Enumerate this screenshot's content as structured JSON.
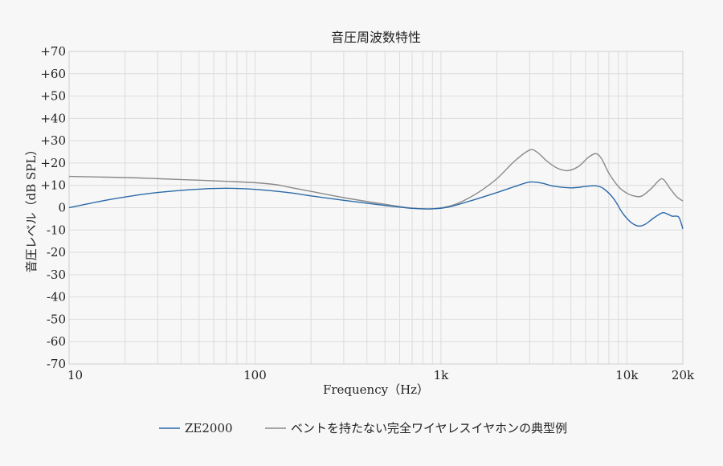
{
  "chart_data": {
    "type": "line",
    "title": "音圧周波数特性",
    "xlabel": "Frequency（Hz）",
    "ylabel": "音圧レベル（dB SPL）",
    "x_scale": "log",
    "xlim": [
      10,
      20000
    ],
    "ylim": [
      -70,
      70
    ],
    "grid": true,
    "legend_position": "bottom",
    "x_ticks": [
      {
        "value": 10,
        "label": "10"
      },
      {
        "value": 100,
        "label": "100"
      },
      {
        "value": 1000,
        "label": "1k"
      },
      {
        "value": 10000,
        "label": "10k"
      },
      {
        "value": 20000,
        "label": "20k"
      }
    ],
    "y_ticks": [
      {
        "value": 70,
        "label": "+70"
      },
      {
        "value": 60,
        "label": "+60"
      },
      {
        "value": 50,
        "label": "+50"
      },
      {
        "value": 40,
        "label": "+40"
      },
      {
        "value": 30,
        "label": "+30"
      },
      {
        "value": 20,
        "label": "+20"
      },
      {
        "value": 10,
        "label": "+10"
      },
      {
        "value": 0,
        "label": "0"
      },
      {
        "value": -10,
        "label": "-10"
      },
      {
        "value": -20,
        "label": "-20"
      },
      {
        "value": -30,
        "label": "-30"
      },
      {
        "value": -40,
        "label": "-40"
      },
      {
        "value": -50,
        "label": "-50"
      },
      {
        "value": -60,
        "label": "-60"
      },
      {
        "value": -70,
        "label": "-70"
      }
    ],
    "series": [
      {
        "name": "ZE2000",
        "color": "#2b6aa8",
        "points": [
          [
            10,
            0
          ],
          [
            15,
            3
          ],
          [
            20,
            4.8
          ],
          [
            30,
            6.8
          ],
          [
            50,
            8.3
          ],
          [
            70,
            8.7
          ],
          [
            100,
            8.2
          ],
          [
            150,
            6.8
          ],
          [
            200,
            5.3
          ],
          [
            300,
            3.3
          ],
          [
            500,
            1
          ],
          [
            700,
            -0.3
          ],
          [
            900,
            -0.5
          ],
          [
            1100,
            0.3
          ],
          [
            1500,
            3.5
          ],
          [
            2000,
            6.8
          ],
          [
            2500,
            9.5
          ],
          [
            3000,
            11.5
          ],
          [
            3500,
            11
          ],
          [
            4000,
            9.7
          ],
          [
            5000,
            8.9
          ],
          [
            6000,
            9.5
          ],
          [
            6800,
            9.8
          ],
          [
            7500,
            8.5
          ],
          [
            8500,
            4
          ],
          [
            9500,
            -2.5
          ],
          [
            10500,
            -6.5
          ],
          [
            11500,
            -8.2
          ],
          [
            12500,
            -7.5
          ],
          [
            14000,
            -4.5
          ],
          [
            15500,
            -2.3
          ],
          [
            16500,
            -2.8
          ],
          [
            17500,
            -3.8
          ],
          [
            19000,
            -4.2
          ],
          [
            20000,
            -9.5
          ]
        ]
      },
      {
        "name": "ベントを持たない完全ワイヤレスイヤホンの典型例",
        "color": "#8a8a8a",
        "points": [
          [
            10,
            14
          ],
          [
            20,
            13.5
          ],
          [
            30,
            13
          ],
          [
            50,
            12.3
          ],
          [
            70,
            11.8
          ],
          [
            100,
            11.2
          ],
          [
            130,
            10.3
          ],
          [
            150,
            9.3
          ],
          [
            200,
            7.3
          ],
          [
            300,
            4.5
          ],
          [
            500,
            1.5
          ],
          [
            700,
            -0.2
          ],
          [
            900,
            -0.5
          ],
          [
            1100,
            0.6
          ],
          [
            1300,
            2.8
          ],
          [
            1600,
            7
          ],
          [
            2000,
            13
          ],
          [
            2500,
            21
          ],
          [
            3000,
            25.8
          ],
          [
            3300,
            24.8
          ],
          [
            3700,
            21
          ],
          [
            4200,
            17.8
          ],
          [
            4800,
            16.6
          ],
          [
            5500,
            18.5
          ],
          [
            6200,
            22.5
          ],
          [
            6800,
            24.2
          ],
          [
            7300,
            22
          ],
          [
            8000,
            15.5
          ],
          [
            9000,
            9.5
          ],
          [
            10000,
            6.5
          ],
          [
            11000,
            5.2
          ],
          [
            12000,
            5.2
          ],
          [
            13500,
            8.5
          ],
          [
            15000,
            12.5
          ],
          [
            15800,
            12.5
          ],
          [
            17000,
            8.8
          ],
          [
            18500,
            5
          ],
          [
            20000,
            3
          ]
        ]
      }
    ]
  }
}
